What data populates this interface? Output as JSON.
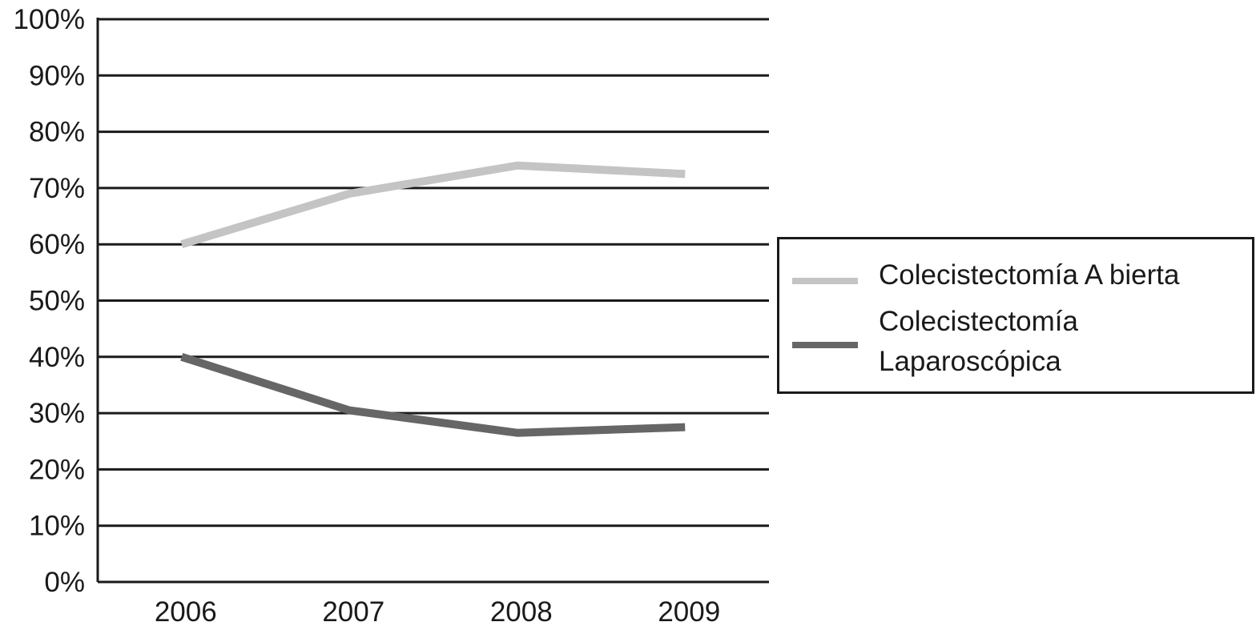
{
  "chart_data": {
    "type": "line",
    "categories": [
      "2006",
      "2007",
      "2008",
      "2009"
    ],
    "series": [
      {
        "name": "Colecistectomía A bierta",
        "values": [
          60,
          69,
          74,
          72.5
        ],
        "color": "#c4c4c4"
      },
      {
        "name": "Colecistectomía\nLaparoscópica",
        "values": [
          40,
          30.5,
          26.5,
          27.5
        ],
        "color": "#666666"
      }
    ],
    "ylim": [
      0,
      100
    ],
    "yticks": [
      0,
      10,
      20,
      30,
      40,
      50,
      60,
      70,
      80,
      90,
      100
    ],
    "ytick_labels": [
      "0%",
      "10%",
      "20%",
      "30%",
      "40%",
      "50%",
      "60%",
      "70%",
      "80%",
      "90%",
      "100%"
    ],
    "grid": true,
    "legend_position": "right",
    "axis_color": "#1a1a1a"
  }
}
